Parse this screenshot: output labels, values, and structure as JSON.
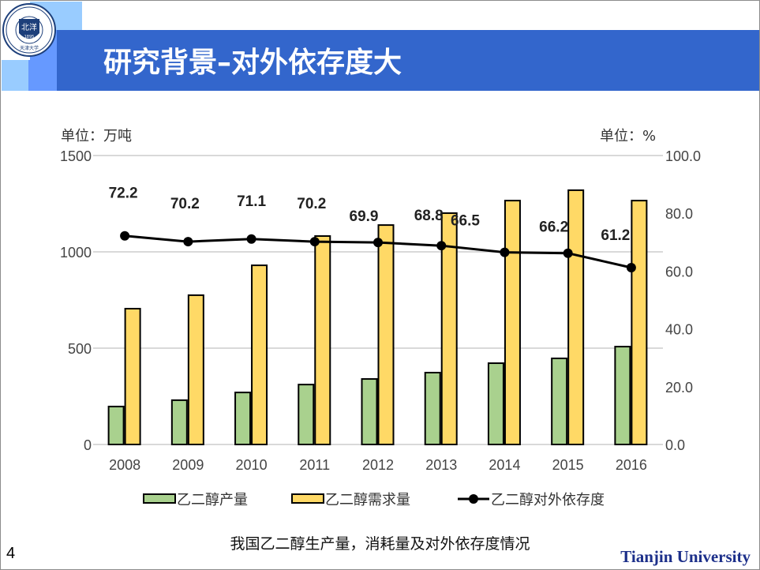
{
  "slide": {
    "title": "研究背景–对外依存度大",
    "caption": "我国乙二醇生产量，消耗量及对外依存度情况",
    "page_number": "4",
    "brand": "Tianjin University",
    "logo_text": "TIANJIN UNIVERSITY (PEIYANG UNIVERSITY) 1895 北洋 天津大学",
    "colors": {
      "title_band": "#3366cc",
      "accent_light": "#99ccff",
      "accent_mid": "#6699ff"
    }
  },
  "chart_data": {
    "type": "bar",
    "title": "",
    "categories": [
      "2008",
      "2009",
      "2010",
      "2011",
      "2012",
      "2013",
      "2014",
      "2015",
      "2016"
    ],
    "left_axis": {
      "unit_label": "单位：万吨",
      "ylim": [
        0,
        1500
      ],
      "ticks": [
        "0",
        "500",
        "1000",
        "1500"
      ]
    },
    "right_axis": {
      "unit_label": "单位：%",
      "ylim": [
        0,
        100
      ],
      "ticks": [
        "0.0",
        "20.0",
        "40.0",
        "60.0",
        "80.0",
        "100.0"
      ]
    },
    "grid": true,
    "legend_position": "bottom",
    "series": [
      {
        "name": "乙二醇产量",
        "type": "bar",
        "axis": "left",
        "color": "#a9d18e",
        "values": [
          197,
          230,
          270,
          311,
          340,
          373,
          422,
          447,
          508
        ]
      },
      {
        "name": "乙二醇需求量",
        "type": "bar",
        "axis": "left",
        "color": "#ffd966",
        "values": [
          705,
          775,
          930,
          1082,
          1139,
          1201,
          1266,
          1320,
          1266
        ]
      },
      {
        "name": "乙二醇对外依存度",
        "type": "line",
        "axis": "right",
        "color": "#000000",
        "values": [
          72.2,
          70.2,
          71.1,
          70.2,
          69.9,
          68.8,
          66.5,
          66.2,
          61.2
        ],
        "labels": [
          "72.2",
          "70.2",
          "71.1",
          "70.2",
          "69.9",
          "68.8",
          "66.5",
          "66.2",
          "61.2"
        ]
      }
    ]
  }
}
